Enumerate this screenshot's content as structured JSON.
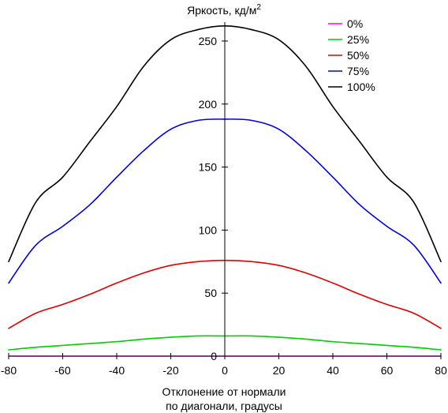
{
  "chart_data": {
    "type": "line",
    "title": "Яркость, кд/м",
    "title_superscript": "2",
    "xlabel_line1": "Отклонение от нормали",
    "xlabel_line2": "по диагонали, градусы",
    "xlim": [
      -80,
      80
    ],
    "ylim": [
      0,
      265
    ],
    "x_ticks": [
      -80,
      -60,
      -40,
      -20,
      0,
      20,
      40,
      60,
      80
    ],
    "y_ticks": [
      0,
      50,
      100,
      150,
      200,
      250
    ],
    "grid": false,
    "legend_position": "top-right",
    "x": [
      -80,
      -70,
      -60,
      -50,
      -40,
      -30,
      -20,
      -10,
      0,
      10,
      20,
      30,
      40,
      50,
      60,
      70,
      80
    ],
    "series": [
      {
        "name": "0%",
        "color": "#ff00ff",
        "values": [
          0,
          0,
          0,
          0,
          0,
          0,
          0,
          0,
          0,
          0,
          0,
          0,
          0,
          0,
          0,
          0,
          0
        ]
      },
      {
        "name": "25%",
        "color": "#00cc00",
        "values": [
          5,
          7,
          8.5,
          10,
          11.5,
          13.5,
          15,
          16,
          16,
          16,
          15,
          13.5,
          11.5,
          10,
          8.5,
          7,
          5
        ]
      },
      {
        "name": "50%",
        "color": "#e00000",
        "values": [
          22,
          34,
          41,
          49,
          58,
          66,
          72,
          75,
          76,
          75,
          72,
          66,
          58,
          49,
          41,
          34,
          22
        ]
      },
      {
        "name": "75%",
        "color": "#0000e0",
        "values": [
          58,
          88,
          103,
          120,
          142,
          163,
          180,
          187,
          188,
          187,
          180,
          163,
          142,
          120,
          103,
          88,
          58
        ]
      },
      {
        "name": "100%",
        "color": "#000000",
        "values": [
          75,
          122,
          142,
          170,
          198,
          230,
          251,
          259,
          262,
          259,
          251,
          230,
          198,
          170,
          142,
          122,
          75
        ]
      }
    ]
  }
}
